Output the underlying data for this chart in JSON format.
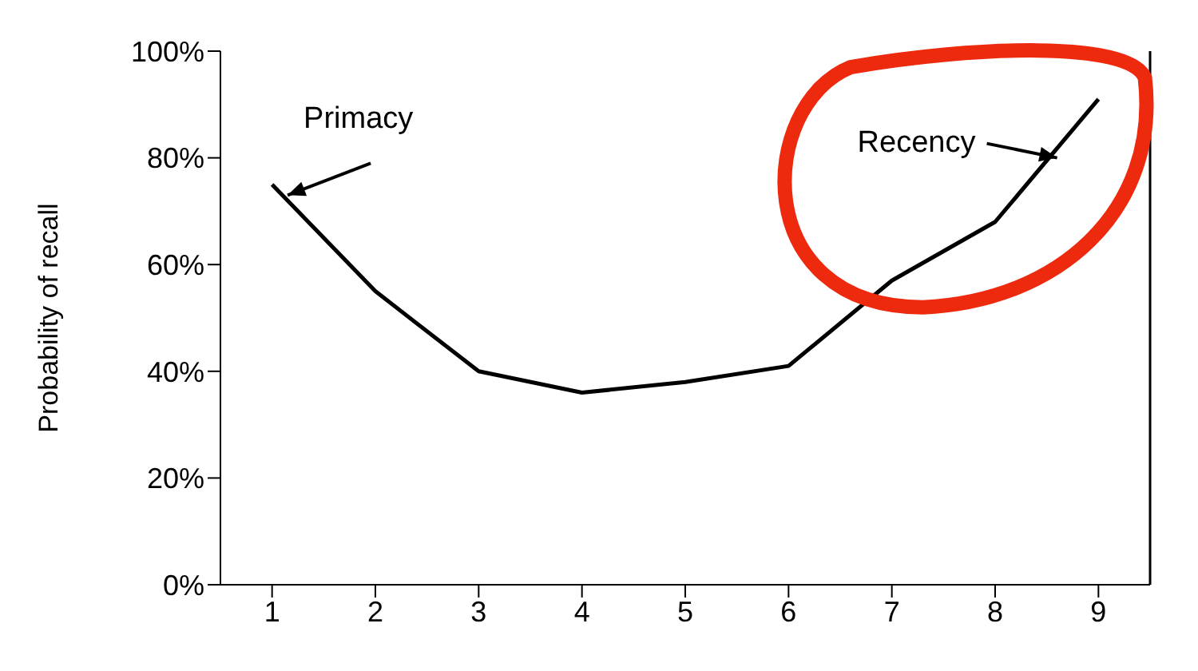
{
  "chart_data": {
    "type": "line",
    "ylabel": "Probability of recall",
    "x": [
      1,
      2,
      3,
      4,
      5,
      6,
      7,
      8,
      9
    ],
    "series": [
      {
        "color": "#000000",
        "values": [
          75,
          55,
          40,
          36,
          38,
          41,
          57,
          68,
          91
        ]
      }
    ],
    "xlim": [
      0.5,
      9.5
    ],
    "xticks": [
      1,
      2,
      3,
      4,
      5,
      6,
      7,
      8,
      9
    ],
    "ylim": [
      0,
      100
    ],
    "yticks": [
      {
        "value": 0,
        "label": "0%"
      },
      {
        "value": 20,
        "label": "20%"
      },
      {
        "value": 40,
        "label": "40%"
      },
      {
        "value": 60,
        "label": "60%"
      },
      {
        "value": 80,
        "label": "80%"
      },
      {
        "value": 100,
        "label": "100%"
      }
    ],
    "annotations": [
      {
        "text": "Primacy",
        "x": 1.15,
        "y": 73
      },
      {
        "text": "Recency",
        "x": 8.6,
        "y": 80
      }
    ],
    "grid": false,
    "marker": "none",
    "line_style": "solid"
  }
}
